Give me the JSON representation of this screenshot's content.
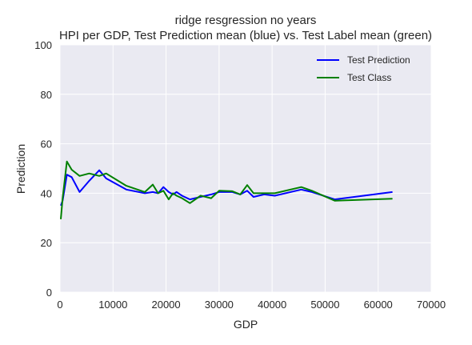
{
  "chart_data": {
    "type": "line",
    "title": "ridge resgression no years",
    "subtitle": "HPI per GDP, Test Prediction mean (blue) vs. Test Label mean (green)",
    "xlabel": "GDP",
    "ylabel": "Prediction",
    "xlim": [
      0,
      70000
    ],
    "ylim": [
      0,
      100
    ],
    "xticks": [
      0,
      10000,
      20000,
      30000,
      40000,
      50000,
      60000,
      70000
    ],
    "yticks": [
      0,
      20,
      40,
      60,
      80,
      100
    ],
    "grid": true,
    "background": "#eaeaf2",
    "legend_position": "top-right",
    "series": [
      {
        "name": "Test Prediction",
        "color": "#0000ff",
        "x": [
          150,
          500,
          1300,
          2200,
          3700,
          5500,
          7400,
          8700,
          12500,
          16000,
          17500,
          18500,
          19500,
          20500,
          21300,
          22000,
          23000,
          24500,
          26500,
          28500,
          30000,
          32500,
          34000,
          35300,
          36500,
          38500,
          40500,
          45500,
          47500,
          51800,
          62700
        ],
        "y": [
          35,
          37,
          47.5,
          46.5,
          40.5,
          45,
          49.3,
          46,
          41.5,
          40,
          40.5,
          40,
          42.5,
          40.5,
          39.5,
          40.5,
          39,
          37.5,
          38.5,
          39.5,
          40.5,
          40.5,
          39.5,
          41,
          38.5,
          39.5,
          39,
          41.5,
          40.5,
          37.5,
          40.5
        ]
      },
      {
        "name": "Test Class",
        "color": "#008000",
        "x": [
          150,
          500,
          1300,
          2200,
          3700,
          5500,
          7400,
          8700,
          12500,
          16000,
          17500,
          18500,
          19500,
          20500,
          21300,
          22000,
          23000,
          24500,
          26500,
          28500,
          30000,
          32500,
          34000,
          35300,
          36500,
          38500,
          40500,
          45500,
          47500,
          51800,
          62700
        ],
        "y": [
          29.5,
          38,
          52.8,
          49.5,
          47,
          48,
          47,
          48,
          43,
          40.5,
          43.5,
          40,
          41,
          37.5,
          40,
          39,
          38,
          36,
          39,
          38,
          41,
          40.8,
          39.5,
          43.3,
          40,
          40,
          40,
          42.5,
          41,
          37,
          37.8
        ]
      }
    ]
  }
}
